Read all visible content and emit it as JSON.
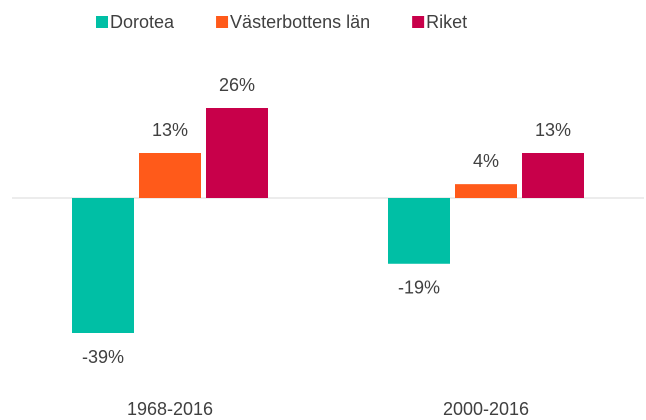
{
  "chart_data": {
    "type": "bar",
    "categories": [
      "1968-2016",
      "2000-2016"
    ],
    "series": [
      {
        "name": "Dorotea",
        "color": "#00bfa5",
        "values": [
          -39,
          -19
        ],
        "value_labels": [
          "-39%",
          "-19%"
        ]
      },
      {
        "name": "Västerbottens län",
        "color": "#ff5a1a",
        "values": [
          13,
          4
        ],
        "value_labels": [
          "13%",
          "4%"
        ]
      },
      {
        "name": "Riket",
        "color": "#c8004a",
        "values": [
          26,
          13
        ],
        "value_labels": [
          "26%",
          "13%"
        ]
      }
    ],
    "legend": "top"
  }
}
